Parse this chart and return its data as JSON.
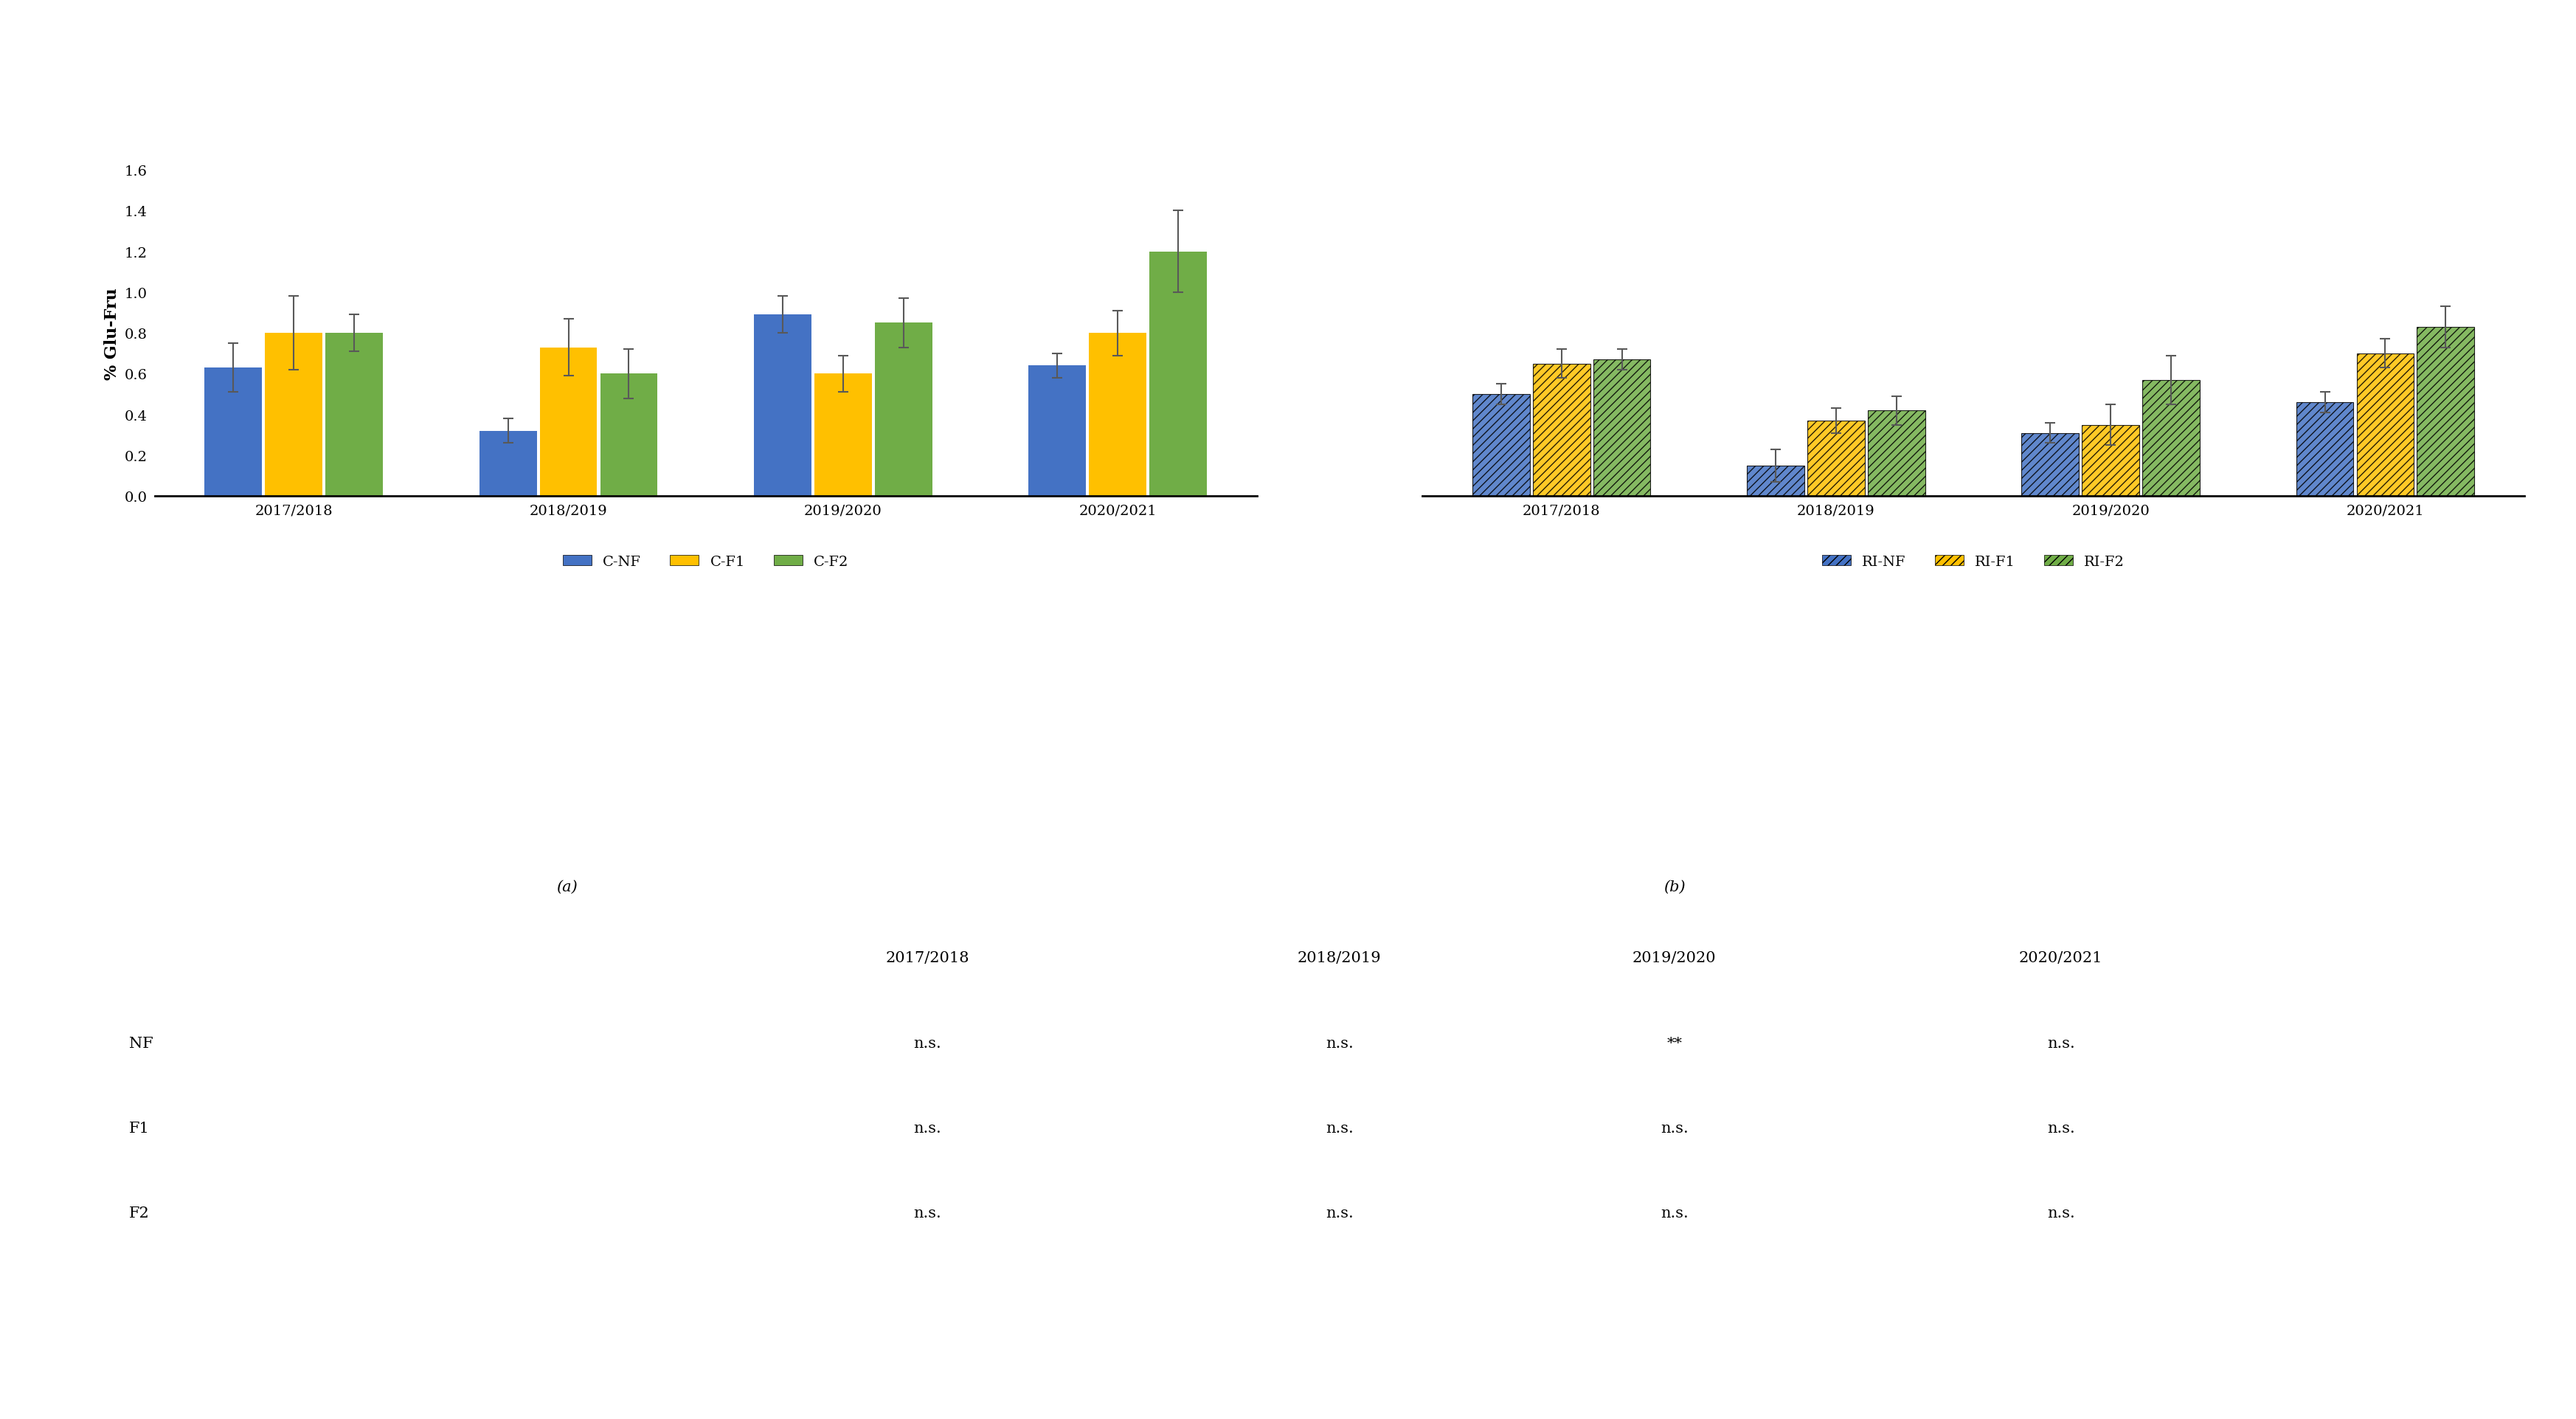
{
  "chart_a": {
    "categories": [
      "2017/2018",
      "2018/2019",
      "2019/2020",
      "2020/2021"
    ],
    "series": {
      "C-NF": {
        "values": [
          0.63,
          0.32,
          0.89,
          0.64
        ],
        "errors": [
          0.12,
          0.06,
          0.09,
          0.06
        ],
        "color": "#4472C4"
      },
      "C-F1": {
        "values": [
          0.8,
          0.73,
          0.6,
          0.8
        ],
        "errors": [
          0.18,
          0.14,
          0.09,
          0.11
        ],
        "color": "#FFC000"
      },
      "C-F2": {
        "values": [
          0.8,
          0.6,
          0.85,
          1.2
        ],
        "errors": [
          0.09,
          0.12,
          0.12,
          0.2
        ],
        "color": "#70AD47"
      }
    },
    "ylabel": "% Glu-Fru",
    "ylim": [
      0,
      1.6
    ],
    "yticks": [
      0.0,
      0.2,
      0.4,
      0.6,
      0.8,
      1.0,
      1.2,
      1.4,
      1.6
    ],
    "label": "(a)"
  },
  "chart_b": {
    "categories": [
      "2017/2018",
      "2018/2019",
      "2019/2020",
      "2020/2021"
    ],
    "series": {
      "RI-NF": {
        "values": [
          0.5,
          0.15,
          0.31,
          0.46
        ],
        "errors": [
          0.05,
          0.08,
          0.05,
          0.05
        ],
        "color": "#4472C4"
      },
      "RI-F1": {
        "values": [
          0.65,
          0.37,
          0.35,
          0.7
        ],
        "errors": [
          0.07,
          0.06,
          0.1,
          0.07
        ],
        "color": "#FFC000"
      },
      "RI-F2": {
        "values": [
          0.67,
          0.42,
          0.57,
          0.83
        ],
        "errors": [
          0.05,
          0.07,
          0.12,
          0.1
        ],
        "color": "#70AD47"
      }
    },
    "ylim": [
      0,
      1.6
    ],
    "yticks": [
      0.0,
      0.2,
      0.4,
      0.6,
      0.8,
      1.0,
      1.2,
      1.4,
      1.6
    ],
    "label": "(b)"
  },
  "table": {
    "row_labels": [
      "NF",
      "F1",
      "F2"
    ],
    "col_labels": [
      "2017/2018",
      "2018/2019",
      "2019/2020",
      "2020/2021"
    ],
    "data": [
      [
        "n.s.",
        "n.s.",
        "**",
        "n.s."
      ],
      [
        "n.s.",
        "n.s.",
        "n.s.",
        "n.s."
      ],
      [
        "n.s.",
        "n.s.",
        "n.s.",
        "n.s."
      ]
    ],
    "label_a": "(a)",
    "label_b": "(b)"
  },
  "bar_width": 0.22,
  "error_color": "#595959",
  "background_color": "#FFFFFF",
  "font_size": 14,
  "tick_font_size": 13
}
